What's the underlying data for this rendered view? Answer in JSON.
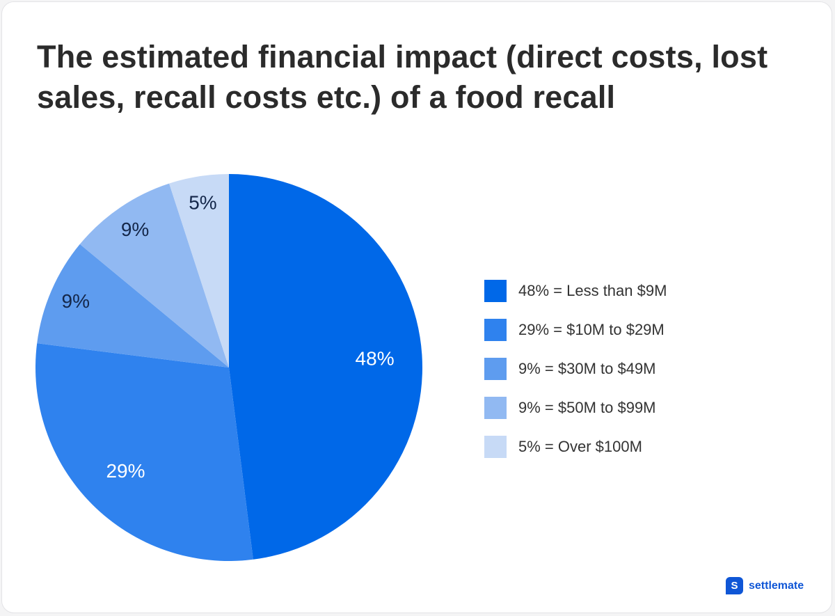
{
  "title": "The estimated financial impact (direct costs, lost sales, recall costs etc.) of a food recall",
  "brand": {
    "name": "settlemate",
    "logo_letter": "S"
  },
  "chart_data": {
    "type": "pie",
    "title": "The estimated financial impact (direct costs, lost sales, recall costs etc.) of a food recall",
    "legend_position": "right",
    "start_angle": "12 o'clock, clockwise",
    "slices": [
      {
        "value": 48,
        "label": "48%",
        "legend": "48% = Less than $9M",
        "color": "#0068e8",
        "label_color": "#ffffff"
      },
      {
        "value": 29,
        "label": "29%",
        "legend": "29% = $10M to $29M",
        "color": "#2f82ee",
        "label_color": "#ffffff"
      },
      {
        "value": 9,
        "label": "9%",
        "legend": "9% = $30M to $49M",
        "color": "#5e9cef",
        "label_color": "#14274a"
      },
      {
        "value": 9,
        "label": "9%",
        "legend": "9% = $50M to $99M",
        "color": "#91b9f2",
        "label_color": "#14274a"
      },
      {
        "value": 5,
        "label": "5%",
        "legend": "5% = Over $100M",
        "color": "#c7daf6",
        "label_color": "#14274a"
      }
    ]
  }
}
